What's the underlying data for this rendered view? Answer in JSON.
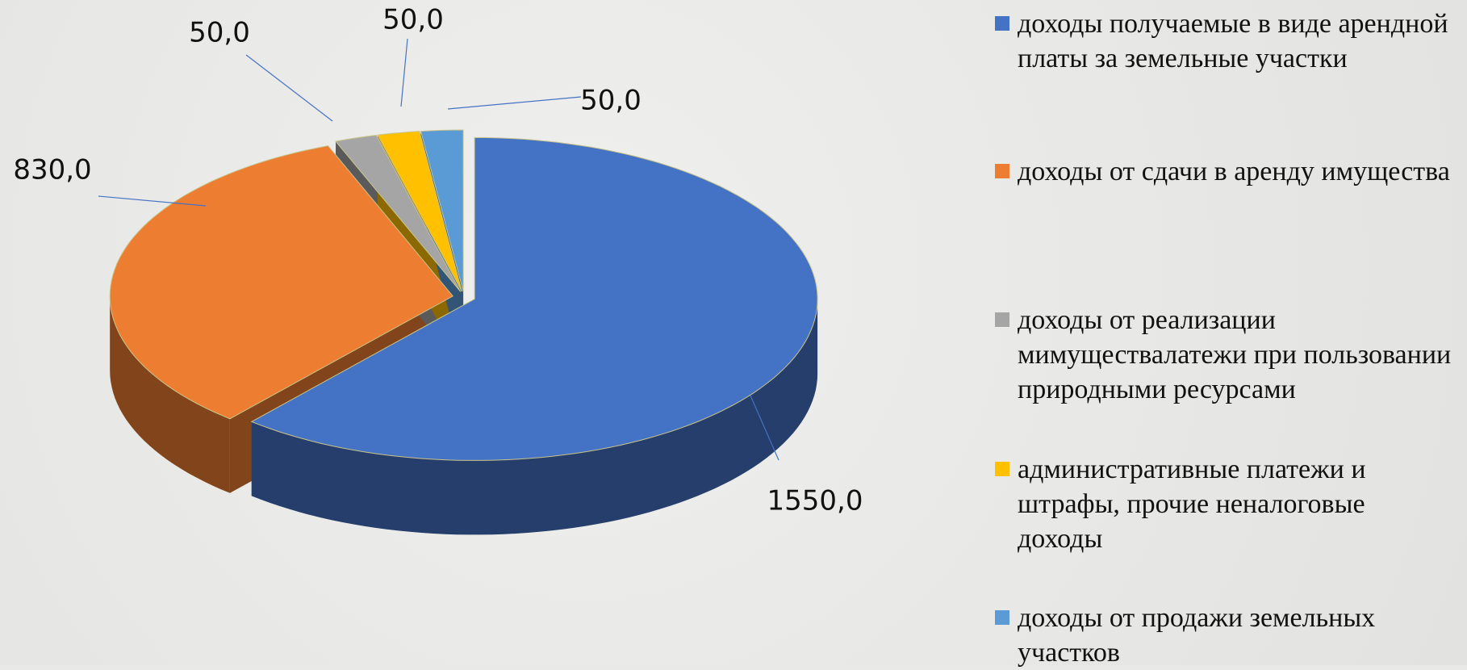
{
  "chart_data": {
    "type": "pie",
    "categories": [
      "доходы получаемые в виде арендной платы за земельные участки",
      "доходы от сдачи в аренду имущества",
      "доходы от реализации мимуществалатежи при пользовании природными ресурсами",
      "административные платежи и штрафы, прочие неналоговые доходы",
      "доходы от продажи земельных участков"
    ],
    "values": [
      1550,
      830,
      50,
      50,
      50
    ],
    "value_labels": [
      "1550,0",
      "830,0",
      "50,0",
      "50,0",
      "50,0"
    ],
    "colors": [
      "#4472c4",
      "#ed7d31",
      "#a5a5a5",
      "#ffc000",
      "#5b9bd5"
    ],
    "legend": "right"
  }
}
